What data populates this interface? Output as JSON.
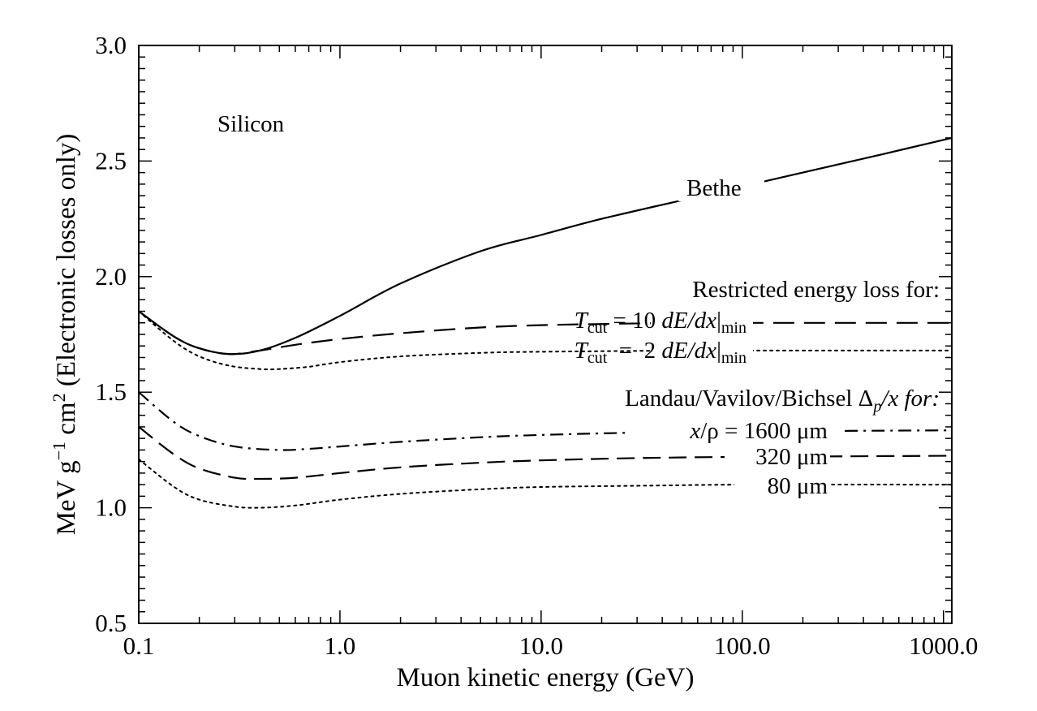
{
  "chart_data": {
    "type": "line",
    "xscale": "log",
    "xlim": [
      0.1,
      1100
    ],
    "ylim": [
      0.5,
      3.0
    ],
    "xlabel": "Muon kinetic energy (GeV)",
    "ylabel_parts": {
      "base": "MeV g",
      "sup1": "−1",
      "mid": " cm",
      "sup2": "2",
      "end": " (Electronic losses only)"
    },
    "xtick_labels": [
      {
        "x": 0.1,
        "label": "0.1"
      },
      {
        "x": 1.0,
        "label": "1.0"
      },
      {
        "x": 10.0,
        "label": "10.0"
      },
      {
        "x": 100.0,
        "label": "100.0"
      },
      {
        "x": 1000.0,
        "label": "1000.0"
      }
    ],
    "ytick_labels": [
      {
        "y": 0.5,
        "label": "0.5"
      },
      {
        "y": 1.0,
        "label": "1.0"
      },
      {
        "y": 1.5,
        "label": "1.5"
      },
      {
        "y": 2.0,
        "label": "2.0"
      },
      {
        "y": 2.5,
        "label": "2.5"
      },
      {
        "y": 3.0,
        "label": "3.0"
      }
    ],
    "material_label": "Silicon",
    "group_labels": {
      "restricted": "Restricted energy loss for:",
      "landau_prefix": "Landau/Vavilov/Bichsel ",
      "landau_delta": "Δ",
      "landau_p": "p",
      "landau_suffix": "/x for:"
    },
    "series_labels": {
      "bethe": "Bethe",
      "tcut_T": "T",
      "tcut_sub": "cut",
      "tcut10_mid": " = 10 ",
      "tcut2_mid": "  =  2 ",
      "dedx": "dE/dx",
      "bar": "|",
      "min_sub": "min",
      "x_rho_x": "x",
      "x_rho_rest": "/ρ = 1600 μm",
      "l320": "320 μm",
      "l80": "80 μm"
    },
    "series": [
      {
        "id": "bethe",
        "style": "solid",
        "x": [
          0.1,
          0.15,
          0.2,
          0.28,
          0.4,
          0.6,
          1.0,
          2.0,
          5.0,
          10,
          20,
          50,
          100,
          200,
          500,
          1100
        ],
        "y": [
          1.85,
          1.74,
          1.69,
          1.665,
          1.68,
          1.735,
          1.83,
          1.97,
          2.11,
          2.18,
          2.25,
          2.33,
          2.39,
          2.45,
          2.53,
          2.6
        ]
      },
      {
        "id": "tcut10",
        "style": "long-dash",
        "x": [
          0.1,
          0.15,
          0.2,
          0.28,
          0.4,
          0.6,
          1.0,
          2.0,
          5.0,
          10,
          20,
          50,
          100,
          300,
          1100
        ],
        "y": [
          1.85,
          1.74,
          1.69,
          1.665,
          1.68,
          1.705,
          1.73,
          1.755,
          1.78,
          1.79,
          1.795,
          1.8,
          1.8,
          1.8,
          1.8
        ]
      },
      {
        "id": "tcut2",
        "style": "dotted",
        "x": [
          0.1,
          0.15,
          0.2,
          0.28,
          0.4,
          0.5,
          0.7,
          1.0,
          2.0,
          5.0,
          10,
          50,
          100,
          1100
        ],
        "y": [
          1.85,
          1.72,
          1.655,
          1.615,
          1.6,
          1.6,
          1.61,
          1.63,
          1.655,
          1.67,
          1.675,
          1.68,
          1.68,
          1.68
        ]
      },
      {
        "id": "landau1600",
        "style": "dash-dot",
        "x": [
          0.1,
          0.15,
          0.2,
          0.3,
          0.5,
          0.7,
          1.0,
          2.0,
          5.0,
          10,
          30,
          100,
          1100
        ],
        "y": [
          1.5,
          1.37,
          1.31,
          1.265,
          1.25,
          1.255,
          1.265,
          1.285,
          1.305,
          1.315,
          1.325,
          1.33,
          1.335
        ]
      },
      {
        "id": "landau320",
        "style": "dashed",
        "x": [
          0.1,
          0.15,
          0.2,
          0.3,
          0.4,
          0.6,
          1.0,
          2.0,
          5.0,
          10,
          30,
          100,
          1100
        ],
        "y": [
          1.35,
          1.23,
          1.17,
          1.13,
          1.125,
          1.13,
          1.15,
          1.175,
          1.195,
          1.205,
          1.215,
          1.22,
          1.225
        ]
      },
      {
        "id": "landau80",
        "style": "dotted",
        "x": [
          0.1,
          0.15,
          0.2,
          0.3,
          0.4,
          0.6,
          1.0,
          2.0,
          5.0,
          10,
          30,
          100,
          1100
        ],
        "y": [
          1.21,
          1.09,
          1.035,
          1.005,
          1.0,
          1.01,
          1.035,
          1.06,
          1.08,
          1.09,
          1.095,
          1.1,
          1.1
        ]
      }
    ]
  }
}
